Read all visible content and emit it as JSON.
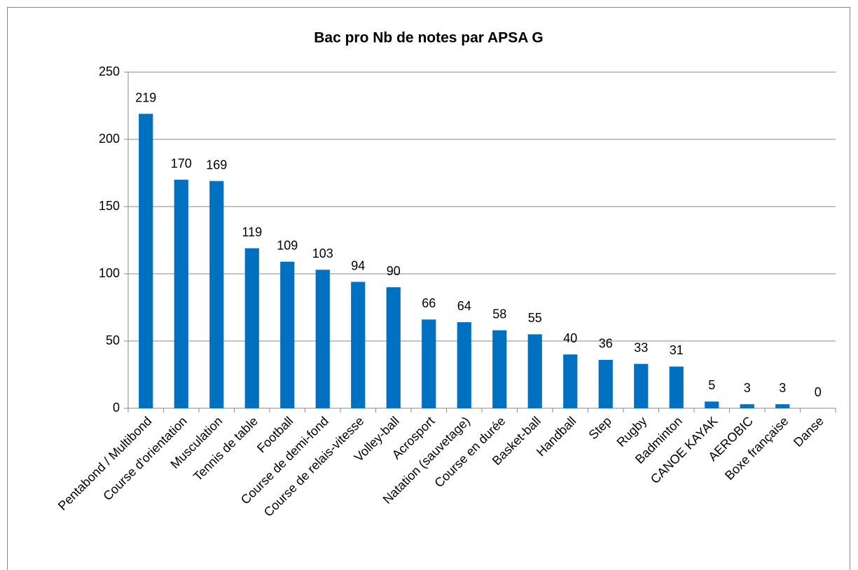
{
  "chart_data": {
    "type": "bar",
    "title": "Bac pro Nb de notes par APSA G",
    "categories": [
      "Pentabond / Multibond",
      "Course d'orientation",
      "Musculation",
      "Tennis de table",
      "Football",
      "Course de demi-fond",
      "Course de relais-vitesse",
      "Volley-ball",
      "Acrosport",
      "Natation (sauvetage)",
      "Course en durée",
      "Basket-ball",
      "Handball",
      "Step",
      "Rugby",
      "Badminton",
      "CANOE KAYAK",
      "AEROBIC",
      "Boxe française",
      "Danse"
    ],
    "values": [
      219,
      170,
      169,
      119,
      109,
      103,
      94,
      90,
      66,
      64,
      58,
      55,
      40,
      36,
      33,
      31,
      5,
      3,
      3,
      0
    ],
    "color": "#0070c0",
    "ylim": [
      0,
      250
    ],
    "yticks": [
      0,
      50,
      100,
      150,
      200,
      250
    ],
    "grid": true,
    "data_labels": true
  }
}
